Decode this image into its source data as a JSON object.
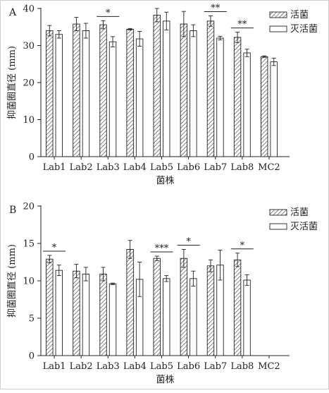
{
  "chart_data": [
    {
      "type": "bar",
      "panel_label": "A",
      "xlabel": "菌株",
      "ylabel": "抑菌圈直径 (mm)",
      "ylim": [
        0,
        40
      ],
      "yticks": [
        0,
        10,
        20,
        30,
        40
      ],
      "categories": [
        "Lab1",
        "Lab2",
        "Lab3",
        "Lab4",
        "Lab5",
        "Lab6",
        "Lab7",
        "Lab8",
        "MC2"
      ],
      "series": [
        {
          "name": "活菌",
          "pattern": "hatched",
          "values": [
            34.0,
            35.8,
            35.6,
            34.4,
            38.2,
            35.8,
            36.6,
            32.2,
            27.0
          ],
          "errors": [
            1.4,
            1.8,
            1.1,
            0.2,
            1.8,
            3.4,
            1.4,
            1.4,
            0.2
          ]
        },
        {
          "name": "灭活菌",
          "pattern": "open",
          "values": [
            33.0,
            34.0,
            31.0,
            31.8,
            36.6,
            34.0,
            32.0,
            28.0,
            25.6
          ],
          "errors": [
            1.0,
            2.0,
            1.4,
            2.0,
            2.4,
            1.6,
            0.5,
            1.0,
            1.0
          ]
        }
      ],
      "significance": [
        {
          "category": "Lab3",
          "label": "*"
        },
        {
          "category": "Lab7",
          "label": "**"
        },
        {
          "category": "Lab8",
          "label": "**"
        }
      ],
      "legend": "top-right",
      "grid": false
    },
    {
      "type": "bar",
      "panel_label": "B",
      "xlabel": "菌株",
      "ylabel": "抑菌圈直径 (mm)",
      "ylim": [
        0,
        20
      ],
      "yticks": [
        0,
        5,
        10,
        15,
        20
      ],
      "categories": [
        "Lab1",
        "Lab2",
        "Lab3",
        "Lab4",
        "Lab5",
        "Lab6",
        "Lab7",
        "Lab8",
        "MC2"
      ],
      "series": [
        {
          "name": "活菌",
          "pattern": "hatched",
          "values": [
            12.9,
            11.3,
            10.9,
            14.2,
            13.0,
            13.0,
            12.0,
            12.8,
            0
          ],
          "errors": [
            0.5,
            0.9,
            0.9,
            1.2,
            0.3,
            1.2,
            0.8,
            0.9,
            0
          ]
        },
        {
          "name": "灭活菌",
          "pattern": "open",
          "values": [
            11.4,
            10.9,
            9.6,
            10.2,
            10.3,
            10.3,
            12.1,
            10.1,
            0
          ],
          "errors": [
            0.7,
            0.9,
            0.1,
            2.3,
            0.4,
            1.0,
            2.0,
            0.7,
            0
          ]
        }
      ],
      "significance": [
        {
          "category": "Lab1",
          "label": "*"
        },
        {
          "category": "Lab5",
          "label": "***"
        },
        {
          "category": "Lab6",
          "label": "*"
        },
        {
          "category": "Lab8",
          "label": "*"
        }
      ],
      "legend": "top-right",
      "grid": false
    }
  ]
}
